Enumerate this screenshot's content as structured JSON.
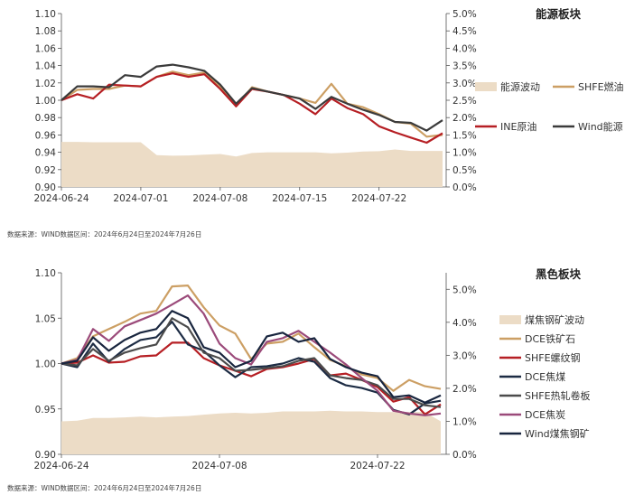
{
  "chart_data": [
    {
      "type": "line",
      "title": "能源板块",
      "source_note": "数据来源：WIND数据区间：2024年6月24日至2024年7月26日",
      "x": [
        "06-24",
        "06-25",
        "06-26",
        "06-27",
        "06-28",
        "07-01",
        "07-02",
        "07-03",
        "07-04",
        "07-05",
        "07-08",
        "07-09",
        "07-10",
        "07-11",
        "07-12",
        "07-15",
        "07-16",
        "07-17",
        "07-18",
        "07-19",
        "07-22",
        "07-23",
        "07-24",
        "07-25",
        "07-26"
      ],
      "x_tick_labels": [
        "2024-06-24",
        "2024-07-01",
        "2024-07-08",
        "2024-07-15",
        "2024-07-22"
      ],
      "y_left_lim": [
        0.9,
        1.1
      ],
      "y_left_ticks": [
        "0.90",
        "0.92",
        "0.94",
        "0.96",
        "0.98",
        "1.00",
        "1.02",
        "1.04",
        "1.06",
        "1.08",
        "1.10"
      ],
      "y_right_lim": [
        0,
        5
      ],
      "y_right_ticks": [
        "0.0%",
        "0.5%",
        "1.0%",
        "1.5%",
        "2.0%",
        "2.5%",
        "3.0%",
        "3.5%",
        "4.0%",
        "4.5%",
        "5.0%"
      ],
      "area_series": {
        "name": "能源波动",
        "color": "#ecdcc6",
        "values": [
          1.3,
          1.3,
          1.29,
          1.29,
          1.29,
          1.29,
          0.92,
          0.9,
          0.91,
          0.93,
          0.95,
          0.88,
          0.98,
          1.0,
          1.0,
          1.0,
          1.0,
          0.97,
          0.99,
          1.02,
          1.03,
          1.08,
          1.04,
          1.04,
          1.04
        ]
      },
      "series": [
        {
          "name": "SHFE燃油",
          "color": "#cc9f64",
          "axis": "left",
          "values": [
            1.0,
            1.012,
            1.013,
            1.013,
            1.017,
            1.016,
            1.027,
            1.033,
            1.029,
            1.032,
            1.016,
            0.993,
            1.015,
            1.01,
            1.006,
            1.002,
            0.997,
            1.019,
            0.996,
            0.992,
            0.984,
            0.975,
            0.973,
            0.958,
            0.96
          ]
        },
        {
          "name": "INE原油",
          "color": "#b61f24",
          "axis": "left",
          "values": [
            1.0,
            1.007,
            1.002,
            1.018,
            1.017,
            1.016,
            1.027,
            1.031,
            1.027,
            1.03,
            1.013,
            0.993,
            1.013,
            1.01,
            1.006,
            0.996,
            0.984,
            1.002,
            0.991,
            0.984,
            0.97,
            0.963,
            0.957,
            0.951,
            0.962
          ]
        },
        {
          "name": "Wind能源",
          "color": "#3b3b3b",
          "axis": "left",
          "values": [
            1.0,
            1.016,
            1.016,
            1.015,
            1.029,
            1.027,
            1.039,
            1.041,
            1.038,
            1.034,
            1.018,
            0.996,
            1.014,
            1.01,
            1.006,
            1.002,
            0.99,
            1.004,
            0.996,
            0.989,
            0.983,
            0.975,
            0.974,
            0.965,
            0.977
          ]
        }
      ],
      "legend": [
        {
          "name": "能源波动",
          "kind": "area",
          "color": "#ecdcc6"
        },
        {
          "name": "SHFE燃油",
          "kind": "line",
          "color": "#cc9f64"
        },
        {
          "name": "INE原油",
          "kind": "line",
          "color": "#b61f24"
        },
        {
          "name": "Wind能源",
          "kind": "line",
          "color": "#3b3b3b"
        }
      ],
      "legend_placement": "right"
    },
    {
      "type": "line",
      "title": "黑色板块",
      "source_note": "数据来源：WIND数据区间：2024年6月24日至2024年7月26日",
      "x": [
        "06-24",
        "06-25",
        "06-26",
        "06-27",
        "06-28",
        "07-01",
        "07-02",
        "07-03",
        "07-04",
        "07-05",
        "07-08",
        "07-09",
        "07-10",
        "07-11",
        "07-12",
        "07-15",
        "07-16",
        "07-17",
        "07-18",
        "07-19",
        "07-22",
        "07-23",
        "07-24",
        "07-25",
        "07-26"
      ],
      "x_tick_labels": [
        "2024-06-24",
        "2024-07-08",
        "2024-07-22"
      ],
      "y_left_lim": [
        0.9,
        1.1
      ],
      "y_left_ticks": [
        "0.90",
        "0.95",
        "1.00",
        "1.05",
        "1.10"
      ],
      "y_right_lim": [
        0,
        5.5
      ],
      "y_right_ticks": [
        "0.0%",
        "1.0%",
        "2.0%",
        "3.0%",
        "4.0%",
        "5.0%"
      ],
      "area_series": {
        "name": "煤焦钢矿波动",
        "color": "#ecdcc6",
        "values": [
          1.0,
          1.02,
          1.1,
          1.1,
          1.12,
          1.14,
          1.12,
          1.14,
          1.16,
          1.2,
          1.24,
          1.26,
          1.24,
          1.26,
          1.3,
          1.3,
          1.3,
          1.32,
          1.3,
          1.3,
          1.28,
          1.28,
          1.28,
          1.28,
          1.0
        ]
      },
      "series": [
        {
          "name": "DCE铁矿石",
          "color": "#cc9f64",
          "axis": "left",
          "values": [
            1.0,
            1.006,
            1.03,
            1.038,
            1.046,
            1.055,
            1.058,
            1.085,
            1.086,
            1.062,
            1.042,
            1.033,
            1.005,
            1.022,
            1.024,
            1.033,
            1.018,
            1.004,
            0.997,
            0.988,
            0.984,
            0.97,
            0.982,
            0.975,
            0.972
          ]
        },
        {
          "name": "SHFE螺纹钢",
          "color": "#b61f24",
          "axis": "left",
          "values": [
            1.0,
            1.001,
            1.009,
            1.001,
            1.002,
            1.008,
            1.009,
            1.023,
            1.023,
            1.006,
            0.998,
            0.992,
            0.986,
            0.994,
            0.996,
            1.0,
            1.005,
            0.987,
            0.989,
            0.982,
            0.974,
            0.958,
            0.963,
            0.944,
            0.955
          ]
        },
        {
          "name": "DCE焦煤",
          "color": "#1d2c44",
          "axis": "left",
          "values": [
            1.0,
            0.996,
            1.022,
            1.002,
            1.016,
            1.026,
            1.029,
            1.046,
            1.021,
            1.014,
            0.998,
            0.985,
            0.996,
            0.997,
            1.0,
            1.006,
            1.002,
            0.984,
            0.976,
            0.973,
            0.968,
            0.949,
            0.944,
            0.956,
            0.959
          ]
        },
        {
          "name": "SHFE热轧卷板",
          "color": "#4b4b4b",
          "axis": "left",
          "values": [
            1.0,
            0.998,
            1.016,
            1.003,
            1.012,
            1.017,
            1.021,
            1.05,
            1.04,
            1.012,
            1.006,
            0.992,
            0.993,
            0.995,
            0.997,
            1.003,
            1.006,
            0.987,
            0.984,
            0.982,
            0.976,
            0.961,
            0.961,
            0.954,
            0.952
          ]
        },
        {
          "name": "DCE焦炭",
          "color": "#9b4a7a",
          "axis": "left",
          "values": [
            1.0,
            1.004,
            1.038,
            1.025,
            1.041,
            1.048,
            1.055,
            1.065,
            1.075,
            1.055,
            1.022,
            1.006,
            0.999,
            1.024,
            1.028,
            1.036,
            1.024,
            1.012,
            0.999,
            0.984,
            0.97,
            0.948,
            0.945,
            0.943,
            0.945
          ]
        },
        {
          "name": "Wind煤焦钢矿",
          "color": "#18253e",
          "axis": "left",
          "values": [
            1.0,
            1.003,
            1.029,
            1.014,
            1.026,
            1.034,
            1.038,
            1.058,
            1.05,
            1.018,
            1.012,
            0.996,
            1.003,
            1.03,
            1.034,
            1.024,
            1.028,
            1.005,
            0.996,
            0.99,
            0.986,
            0.963,
            0.965,
            0.957,
            0.965
          ]
        }
      ],
      "legend": [
        {
          "name": "煤焦钢矿波动",
          "kind": "area",
          "color": "#ecdcc6"
        },
        {
          "name": "DCE铁矿石",
          "kind": "line",
          "color": "#cc9f64"
        },
        {
          "name": "SHFE螺纹钢",
          "kind": "line",
          "color": "#b61f24"
        },
        {
          "name": "DCE焦煤",
          "kind": "line",
          "color": "#1d2c44"
        },
        {
          "name": "SHFE热轧卷板",
          "kind": "line",
          "color": "#4b4b4b"
        },
        {
          "name": "DCE焦炭",
          "kind": "line",
          "color": "#9b4a7a"
        },
        {
          "name": "Wind煤焦钢矿",
          "kind": "line",
          "color": "#18253e"
        }
      ],
      "legend_placement": "right"
    }
  ]
}
